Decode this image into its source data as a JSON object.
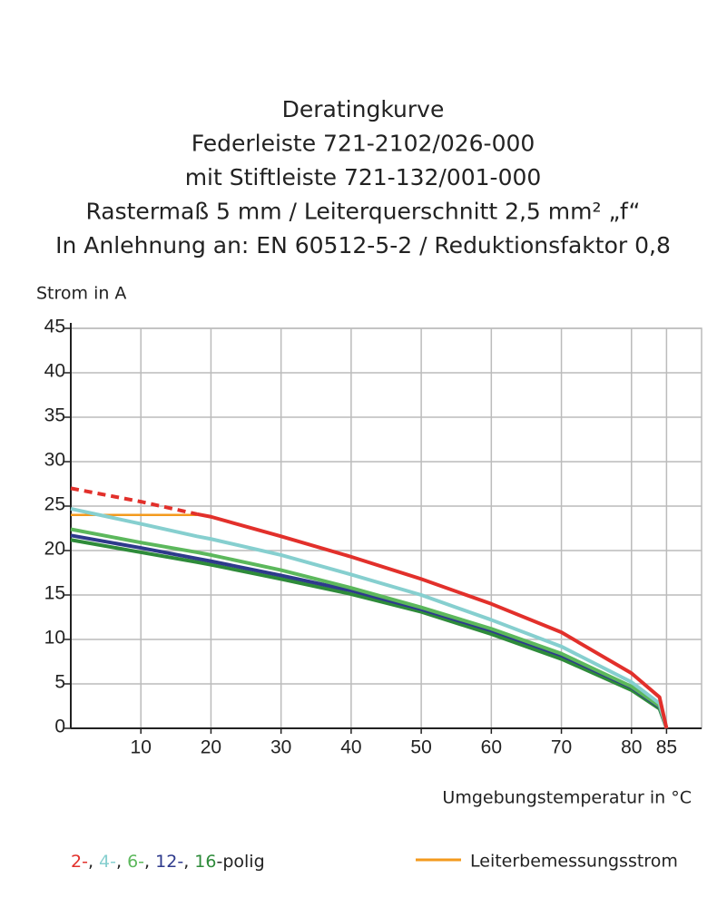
{
  "chart_data": {
    "type": "line",
    "title": [
      "Deratingkurve",
      "Federleiste 721-2102/026-000",
      "mit Stiftleiste 721-132/001-000",
      "Rastermaß 5 mm / Leiterquerschnitt 2,5 mm² „f“",
      "In Anlehnung an: EN 60512-5-2 / Reduktionsfaktor 0,8"
    ],
    "ylabel": "Strom in A",
    "xlabel": "Umgebungstemperatur in °C",
    "x": [
      0,
      10,
      18,
      20,
      30,
      40,
      50,
      60,
      70,
      80,
      84,
      85
    ],
    "xlim": [
      0,
      90
    ],
    "ylim": [
      0,
      45
    ],
    "xticks": [
      10,
      20,
      30,
      40,
      50,
      60,
      70,
      80,
      85
    ],
    "yticks": [
      0,
      5,
      10,
      15,
      20,
      25,
      30,
      35,
      40,
      45
    ],
    "grid": true,
    "series": [
      {
        "name": "2-",
        "color": "#e2302b",
        "values": [
          27,
          25.5,
          24.1,
          23.8,
          21.6,
          19.3,
          16.8,
          14.0,
          10.8,
          6.2,
          3.5,
          0
        ],
        "line_style": [
          "dashed",
          "dashed",
          "dashed",
          "solid",
          "solid",
          "solid",
          "solid",
          "solid",
          "solid",
          "solid",
          "solid",
          "solid"
        ]
      },
      {
        "name": "4-",
        "color": "#86cfcf",
        "values": [
          24.7,
          23.0,
          21.6,
          21.3,
          19.5,
          17.3,
          15.0,
          12.2,
          9.2,
          5.2,
          2.8,
          0
        ]
      },
      {
        "name": "6-",
        "color": "#5cb85c",
        "values": [
          22.4,
          20.9,
          19.8,
          19.5,
          17.8,
          15.8,
          13.6,
          11.2,
          8.4,
          4.7,
          2.5,
          0
        ]
      },
      {
        "name": "12-",
        "color": "#2e3a8c",
        "values": [
          21.7,
          20.3,
          19.1,
          18.8,
          17.2,
          15.5,
          13.4,
          11.0,
          8.2,
          4.6,
          2.4,
          0
        ]
      },
      {
        "name": "16",
        "color": "#2e8b3a",
        "values": [
          21.2,
          19.8,
          18.7,
          18.4,
          16.8,
          15.1,
          13.1,
          10.6,
          7.8,
          4.3,
          2.2,
          0
        ]
      }
    ],
    "legend_separator": ", ",
    "legend_suffix": "-polig",
    "reference": {
      "name": "Leiterbemessungsstrom",
      "color": "#f39a1e",
      "values": [
        24,
        24,
        24,
        null,
        null,
        null,
        null,
        null,
        null,
        null,
        null,
        null
      ]
    }
  }
}
